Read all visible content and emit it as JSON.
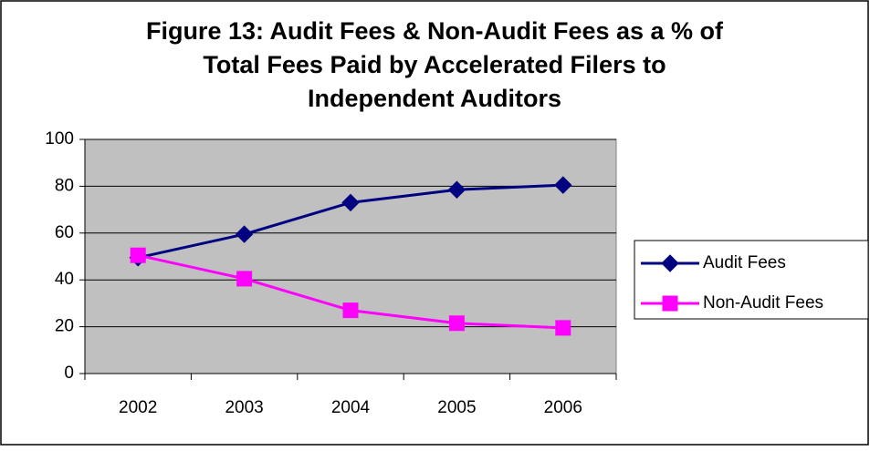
{
  "chart_data": {
    "type": "line",
    "title": [
      "Figure 13: Audit Fees & Non-Audit Fees as a % of",
      "Total Fees Paid by Accelerated Filers to",
      "Independent Auditors"
    ],
    "categories": [
      "2002",
      "2003",
      "2004",
      "2005",
      "2006"
    ],
    "series": [
      {
        "name": "Audit Fees",
        "color": "#000080",
        "marker": "diamond",
        "values": [
          49.5,
          59.5,
          73,
          78.5,
          80.5
        ]
      },
      {
        "name": "Non-Audit Fees",
        "color": "#ff00ff",
        "marker": "square",
        "values": [
          50.5,
          40.5,
          27,
          21.5,
          19.5
        ]
      }
    ],
    "ylim": [
      0,
      100
    ],
    "yticks": [
      0,
      20,
      40,
      60,
      80,
      100
    ],
    "grid": true,
    "legend": "right"
  }
}
